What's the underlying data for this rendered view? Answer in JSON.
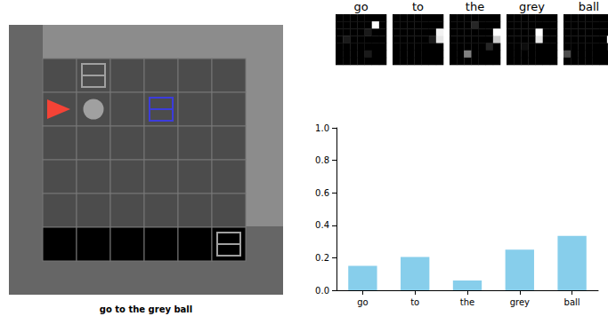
{
  "game": {
    "caption": "go to the grey ball",
    "grid": {
      "rows": 6,
      "cols": 6
    },
    "hidden_rows": [
      5
    ],
    "objects": [
      {
        "type": "agent",
        "color": "red",
        "row": 1,
        "col": 0,
        "direction": "right"
      },
      {
        "type": "ball",
        "color": "grey",
        "row": 1,
        "col": 1
      },
      {
        "type": "box",
        "color": "grey",
        "row": 0,
        "col": 1
      },
      {
        "type": "box",
        "color": "blue",
        "row": 1,
        "col": 3
      },
      {
        "type": "box",
        "color": "grey",
        "row": 5,
        "col": 5
      }
    ]
  },
  "attention_maps": [
    {
      "word": "go",
      "cells": [
        [
          0,
          0,
          0,
          0,
          0,
          0,
          0
        ],
        [
          0,
          0,
          0,
          0,
          0,
          1,
          0
        ],
        [
          0,
          0,
          0,
          0,
          0.1,
          0,
          0
        ],
        [
          0,
          0.1,
          0,
          0,
          0,
          0,
          0
        ],
        [
          0,
          0,
          0,
          0,
          0,
          0,
          0
        ],
        [
          0,
          0,
          0,
          0,
          0.1,
          0,
          0
        ],
        [
          0,
          0,
          0,
          0,
          0,
          0,
          0
        ]
      ]
    },
    {
      "word": "to",
      "cells": [
        [
          0,
          0,
          0,
          0,
          0,
          0,
          0
        ],
        [
          0,
          0,
          0,
          0,
          0,
          0,
          0
        ],
        [
          0,
          0,
          0,
          0,
          0,
          0,
          0.95
        ],
        [
          0,
          0,
          0,
          0,
          0,
          0.1,
          0.9
        ],
        [
          0,
          0,
          0,
          0,
          0,
          0,
          0
        ],
        [
          0,
          0,
          0,
          0,
          0,
          0,
          0
        ],
        [
          0,
          0,
          0,
          0,
          0,
          0,
          0
        ]
      ]
    },
    {
      "word": "the",
      "cells": [
        [
          0,
          0,
          0,
          0,
          0,
          0,
          0
        ],
        [
          0,
          0,
          0,
          0.15,
          0,
          0,
          0
        ],
        [
          0,
          0,
          0,
          0,
          0,
          0,
          1
        ],
        [
          0,
          0,
          0,
          0,
          0,
          0,
          0.8
        ],
        [
          0,
          0,
          0,
          0,
          0,
          0.15,
          0
        ],
        [
          0,
          0,
          0.5,
          0,
          0,
          0,
          0
        ],
        [
          0,
          0,
          0,
          0,
          0,
          0,
          0
        ]
      ]
    },
    {
      "word": "grey",
      "cells": [
        [
          0,
          0,
          0,
          0,
          0,
          0,
          0
        ],
        [
          0,
          0,
          0,
          0,
          0,
          0,
          0
        ],
        [
          0,
          0,
          0,
          0,
          1,
          0,
          0
        ],
        [
          0,
          0,
          0,
          0,
          0.9,
          0,
          0
        ],
        [
          0,
          0,
          0.05,
          0,
          0,
          0,
          0
        ],
        [
          0,
          0,
          0,
          0,
          0,
          0,
          0
        ],
        [
          0,
          0,
          0,
          0,
          0,
          0,
          0
        ]
      ]
    },
    {
      "word": "ball",
      "cells": [
        [
          0,
          0,
          0,
          0,
          0,
          0,
          0
        ],
        [
          0,
          0,
          0,
          0,
          0,
          0,
          0
        ],
        [
          0,
          0,
          0,
          0,
          0,
          0,
          0
        ],
        [
          0,
          0,
          0,
          0,
          0,
          0,
          1
        ],
        [
          0,
          0,
          0,
          0,
          0,
          0,
          0.1
        ],
        [
          0.3,
          0,
          0,
          0,
          0,
          0,
          0
        ],
        [
          0,
          0,
          0,
          0,
          0,
          0,
          0
        ]
      ]
    }
  ],
  "chart_data": {
    "type": "bar",
    "categories": [
      "go",
      "to",
      "the",
      "grey",
      "ball"
    ],
    "values": [
      0.15,
      0.205,
      0.06,
      0.25,
      0.335
    ],
    "color": "#87ceeb",
    "ylim": [
      0,
      1
    ],
    "yticks": [
      {
        "value": 0,
        "label": "0.0"
      },
      0.2,
      0.4,
      0.6,
      0.8,
      {
        "value": 1,
        "label": "1.0"
      }
    ],
    "grid": false
  }
}
